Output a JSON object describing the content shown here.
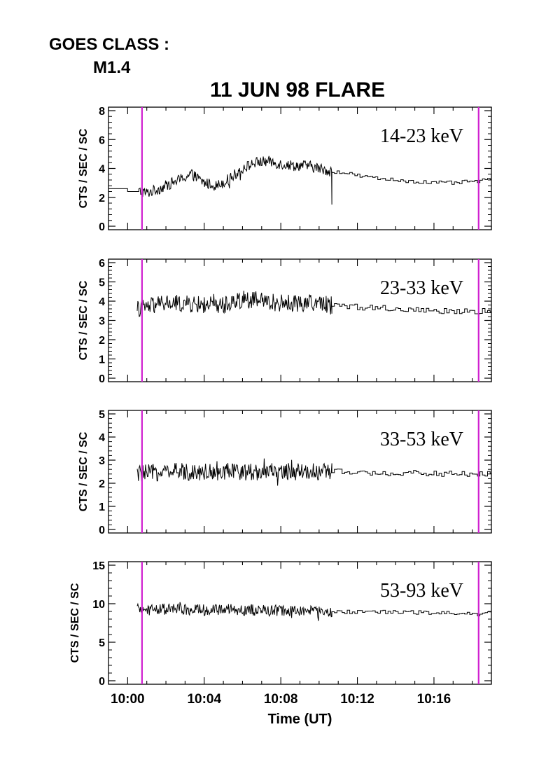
{
  "header": {
    "goes_label": "GOES CLASS :",
    "goes_class": "M1.4",
    "title": "11 JUN 98 FLARE"
  },
  "colors": {
    "marker": "#d020d0",
    "trace": "#000000"
  },
  "chart_data": [
    {
      "type": "line",
      "annotation": "14-23 keV",
      "ylabel": "CTS / SEC / SC",
      "xlabel": "",
      "ylim": [
        0,
        8
      ],
      "yticks": [
        0,
        2,
        4,
        6,
        8
      ],
      "xlim": [
        "09:59",
        "10:19"
      ],
      "markers": [
        "10:00:45",
        "10:18:20"
      ],
      "x": [
        "10:00:00",
        "10:00:40",
        "10:01:00",
        "10:01:40",
        "10:02:20",
        "10:02:40",
        "10:03:20",
        "10:04:00",
        "10:04:40",
        "10:05:20",
        "10:06:00",
        "10:06:40",
        "10:07:20",
        "10:08:00",
        "10:08:40",
        "10:09:20",
        "10:10:00",
        "10:10:40",
        "10:11:20",
        "10:12:00",
        "10:13:00",
        "10:14:00",
        "10:15:00",
        "10:16:00",
        "10:17:00",
        "10:18:00",
        "10:19:00"
      ],
      "values": [
        2.6,
        2.4,
        2.3,
        2.6,
        3.0,
        3.2,
        3.6,
        3.0,
        2.8,
        3.3,
        4.0,
        4.4,
        4.5,
        4.3,
        4.2,
        4.2,
        4.0,
        3.8,
        3.7,
        3.5,
        3.3,
        3.2,
        3.1,
        3.0,
        3.0,
        3.1,
        3.2
      ],
      "noise": 0.38
    },
    {
      "type": "line",
      "annotation": "23-33 keV",
      "ylabel": "CTS / SEC / SC",
      "xlabel": "",
      "ylim": [
        0,
        6
      ],
      "yticks": [
        0,
        1,
        2,
        3,
        4,
        5,
        6
      ],
      "xlim": [
        "09:59",
        "10:19"
      ],
      "markers": [
        "10:00:45",
        "10:18:20"
      ],
      "x": [
        "10:00:30",
        "10:02:00",
        "10:04:00",
        "10:05:00",
        "10:06:00",
        "10:07:00",
        "10:08:00",
        "10:09:00",
        "10:10:00",
        "10:10:40",
        "10:12:00",
        "10:14:00",
        "10:16:00",
        "10:18:00",
        "10:19:00"
      ],
      "values": [
        3.6,
        3.9,
        3.8,
        3.8,
        4.1,
        4.0,
        3.9,
        3.9,
        3.9,
        3.8,
        3.7,
        3.6,
        3.5,
        3.5,
        3.5
      ],
      "noise": 0.45
    },
    {
      "type": "line",
      "annotation": "33-53 keV",
      "ylabel": "CTS / SEC / SC",
      "xlabel": "",
      "ylim": [
        0,
        5
      ],
      "yticks": [
        0,
        1,
        2,
        3,
        4,
        5
      ],
      "xlim": [
        "09:59",
        "10:19"
      ],
      "markers": [
        "10:00:45",
        "10:18:20"
      ],
      "x": [
        "10:00:30",
        "10:02:00",
        "10:04:00",
        "10:06:00",
        "10:08:00",
        "10:10:00",
        "10:10:40",
        "10:12:00",
        "10:14:00",
        "10:16:00",
        "10:18:00",
        "10:19:00"
      ],
      "values": [
        2.4,
        2.5,
        2.5,
        2.5,
        2.5,
        2.5,
        2.5,
        2.45,
        2.45,
        2.4,
        2.4,
        2.4
      ],
      "noise": 0.38
    },
    {
      "type": "line",
      "annotation": "53-93 keV",
      "ylabel": "CTS / SEC / SC",
      "xlabel": "Time (UT)",
      "ylim": [
        0,
        15
      ],
      "yticks": [
        0,
        5,
        10,
        15
      ],
      "xlim": [
        "09:59",
        "10:19"
      ],
      "xticks": [
        "10:00",
        "10:04",
        "10:08",
        "10:12",
        "10:16"
      ],
      "markers": [
        "10:00:45",
        "10:18:20"
      ],
      "x": [
        "10:00:30",
        "10:02:00",
        "10:04:00",
        "10:06:00",
        "10:08:00",
        "10:10:00",
        "10:10:40",
        "10:12:00",
        "10:14:00",
        "10:16:00",
        "10:18:00",
        "10:19:00"
      ],
      "values": [
        9.2,
        9.3,
        9.2,
        9.2,
        9.1,
        9.0,
        9.0,
        8.9,
        8.9,
        8.8,
        8.7,
        8.7
      ],
      "noise": 0.75
    }
  ]
}
